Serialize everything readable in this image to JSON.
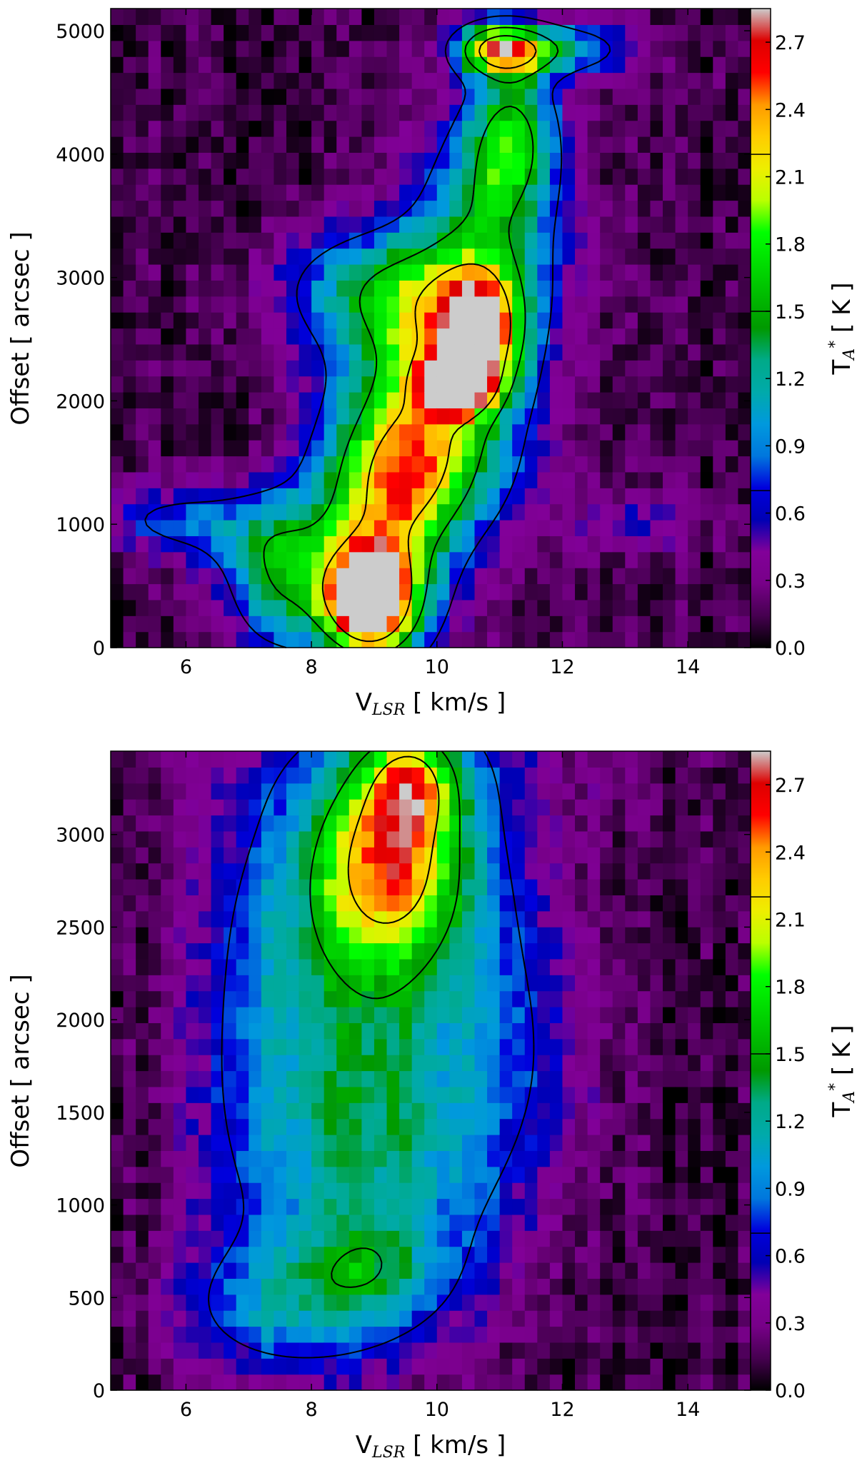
{
  "chart_data": [
    {
      "type": "heatmap",
      "title": "",
      "xlabel_main": "V",
      "xlabel_sub": "LSR",
      "xlabel_unit": "[ km/s ]",
      "ylabel": "Offset  [ arcsec ]",
      "x_range": [
        4.8,
        15.0
      ],
      "y_range": [
        0,
        5180
      ],
      "x_ticks": [
        6,
        8,
        10,
        12,
        14
      ],
      "y_ticks": [
        0,
        1000,
        2000,
        3000,
        4000,
        5000
      ],
      "colorbar": {
        "label_main": "T",
        "label_sub": "A",
        "label_sup": "*",
        "label_unit": "[ K ]",
        "range": [
          0.0,
          2.85
        ],
        "ticks": [
          "0.0",
          "0.3",
          "0.6",
          "0.9",
          "1.2",
          "1.5",
          "1.8",
          "2.1",
          "2.4",
          "2.7"
        ],
        "contour_levels": [
          0.7,
          1.5,
          2.2
        ]
      },
      "features": [
        {
          "v": 5.6,
          "o": 1050,
          "sv": 0.9,
          "so": 200,
          "amp": 0.45
        },
        {
          "v": 6.8,
          "o": 950,
          "sv": 1.0,
          "so": 250,
          "amp": 0.45
        },
        {
          "v": 7.5,
          "o": 550,
          "sv": 0.6,
          "so": 400,
          "amp": 1.2
        },
        {
          "v": 8.9,
          "o": 380,
          "sv": 0.5,
          "so": 300,
          "amp": 2.6
        },
        {
          "v": 9.2,
          "o": 750,
          "sv": 0.8,
          "so": 600,
          "amp": 1.3
        },
        {
          "v": 9.6,
          "o": 1400,
          "sv": 1.0,
          "so": 400,
          "amp": 1.3
        },
        {
          "v": 9.9,
          "o": 2100,
          "sv": 1.0,
          "so": 500,
          "amp": 1.5
        },
        {
          "v": 10.3,
          "o": 2150,
          "sv": 0.35,
          "so": 150,
          "amp": 2.5
        },
        {
          "v": 10.7,
          "o": 2550,
          "sv": 0.5,
          "so": 350,
          "amp": 1.8
        },
        {
          "v": 9.5,
          "o": 2900,
          "sv": 1.3,
          "so": 350,
          "amp": 1.3
        },
        {
          "v": 10.8,
          "o": 3600,
          "sv": 0.8,
          "so": 500,
          "amp": 1.1
        },
        {
          "v": 11.2,
          "o": 4200,
          "sv": 0.5,
          "so": 400,
          "amp": 1.2
        },
        {
          "v": 11.0,
          "o": 4850,
          "sv": 0.5,
          "so": 150,
          "amp": 2.0
        },
        {
          "v": 12.0,
          "o": 4850,
          "sv": 0.8,
          "so": 150,
          "amp": 0.9
        },
        {
          "v": 13.2,
          "o": 1000,
          "sv": 0.8,
          "so": 150,
          "amp": 0.4
        }
      ]
    },
    {
      "type": "heatmap",
      "title": "",
      "xlabel_main": "V",
      "xlabel_sub": "LSR",
      "xlabel_unit": "[ km/s ]",
      "ylabel": "Offset  [ arcsec ]",
      "x_range": [
        4.8,
        15.0
      ],
      "y_range": [
        0,
        3450
      ],
      "x_ticks": [
        6,
        8,
        10,
        12,
        14
      ],
      "y_ticks": [
        0,
        500,
        1000,
        1500,
        2000,
        2500,
        3000
      ],
      "colorbar": {
        "label_main": "T",
        "label_sub": "A",
        "label_sup": "*",
        "label_unit": "[ K ]",
        "range": [
          0.0,
          2.85
        ],
        "ticks": [
          "0.0",
          "0.3",
          "0.6",
          "0.9",
          "1.2",
          "1.5",
          "1.8",
          "2.1",
          "2.4",
          "2.7"
        ],
        "contour_levels": [
          0.7,
          1.5,
          2.2
        ]
      },
      "features": [
        {
          "v": 9.0,
          "o": 1400,
          "sv": 1.5,
          "so": 700,
          "amp": 1.2
        },
        {
          "v": 9.0,
          "o": 2700,
          "sv": 1.4,
          "so": 500,
          "amp": 1.1
        },
        {
          "v": 9.3,
          "o": 2900,
          "sv": 0.8,
          "so": 350,
          "amp": 1.3
        },
        {
          "v": 9.6,
          "o": 3300,
          "sv": 0.5,
          "so": 200,
          "amp": 1.2
        },
        {
          "v": 9.0,
          "o": 650,
          "sv": 0.8,
          "so": 200,
          "amp": 0.5
        },
        {
          "v": 7.5,
          "o": 450,
          "sv": 1.2,
          "so": 250,
          "amp": 0.7
        },
        {
          "v": 7.0,
          "o": 1900,
          "sv": 0.8,
          "so": 700,
          "amp": 0.3
        },
        {
          "v": 11.5,
          "o": 1900,
          "sv": 0.8,
          "so": 600,
          "amp": 0.3
        },
        {
          "v": 9.5,
          "o": 3450,
          "sv": 2.5,
          "so": 300,
          "amp": 0.3
        }
      ]
    }
  ]
}
